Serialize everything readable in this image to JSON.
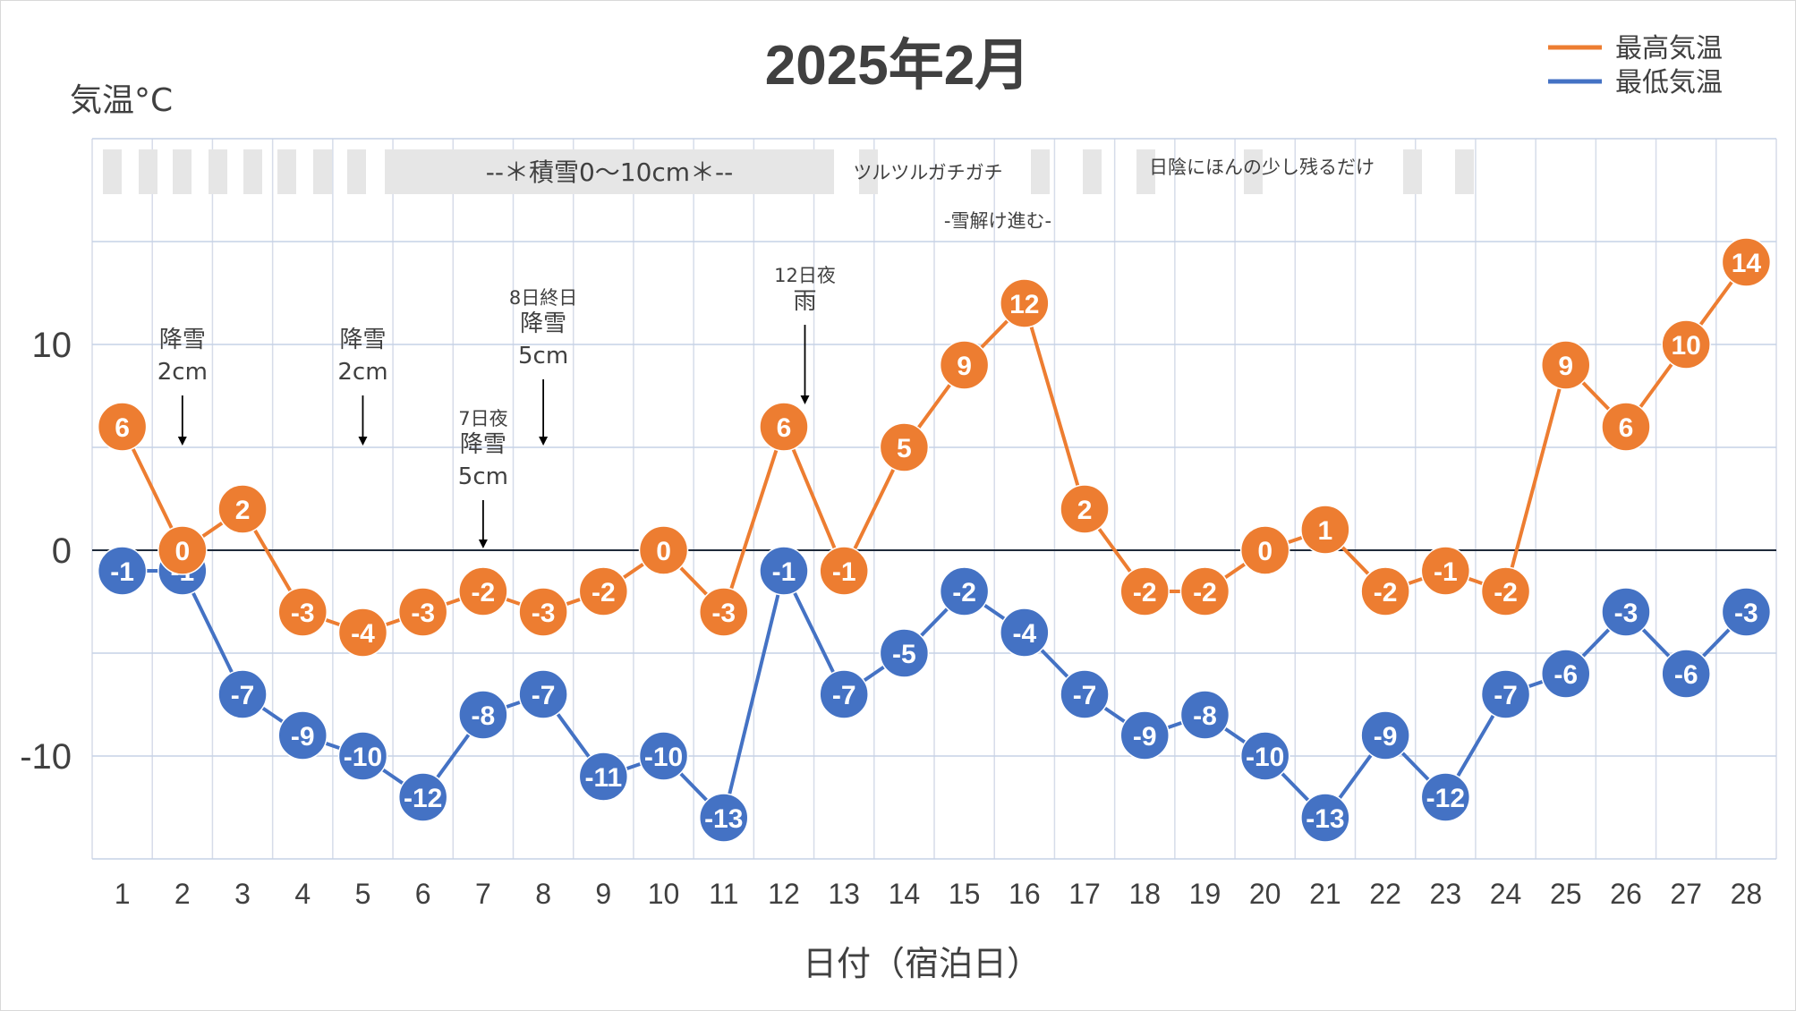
{
  "chart_data": {
    "type": "line",
    "title": "2025年2月",
    "ylabel": "気温°C",
    "xlabel": "日付（宿泊日）",
    "categories": [
      "1",
      "2",
      "3",
      "4",
      "5",
      "6",
      "7",
      "8",
      "9",
      "10",
      "11",
      "12",
      "13",
      "14",
      "15",
      "16",
      "17",
      "18",
      "19",
      "20",
      "21",
      "22",
      "23",
      "24",
      "25",
      "26",
      "27",
      "28"
    ],
    "yticks": [
      "10",
      "0",
      "-10"
    ],
    "ylim": [
      -15,
      20
    ],
    "grid": true,
    "legend_position": "top-right",
    "series": [
      {
        "name": "最高気温",
        "color": "#ED7D31",
        "values": [
          6,
          0,
          2,
          -3,
          -4,
          -3,
          -2,
          -3,
          -2,
          0,
          -3,
          6,
          -1,
          5,
          9,
          12,
          2,
          -2,
          -2,
          0,
          1,
          -2,
          -1,
          -2,
          9,
          6,
          10,
          14
        ]
      },
      {
        "name": "最低気温",
        "color": "#4472C4",
        "values": [
          -1,
          -1,
          -7,
          -9,
          -10,
          -12,
          -8,
          -7,
          -11,
          -10,
          -13,
          -1,
          -7,
          -5,
          -2,
          -4,
          -7,
          -9,
          -8,
          -10,
          -13,
          -9,
          -12,
          -7,
          -6,
          -3,
          -6,
          -3
        ]
      }
    ],
    "annotations": [
      {
        "lines": [
          "降雪",
          "2cm"
        ],
        "day": 2,
        "arrow_to": 5
      },
      {
        "lines": [
          "降雪",
          "2cm"
        ],
        "day": 5,
        "arrow_to": 5
      },
      {
        "lines": [
          "7日夜",
          "降雪",
          "5cm"
        ],
        "day": 7,
        "arrow_to": 0
      },
      {
        "lines": [
          "8日終日",
          "降雪",
          "5cm"
        ],
        "day": 8,
        "arrow_to": 5
      },
      {
        "lines": [
          "12日夜",
          "雨"
        ],
        "day": 12.35,
        "arrow_to": 7
      }
    ],
    "snow_bar": {
      "label": "--＊積雪0～10cm＊--",
      "segment_labels": [
        "ツルツルガチガチ",
        "-雪解け進む-",
        "日陰にほんの少し残るだけ"
      ]
    }
  }
}
